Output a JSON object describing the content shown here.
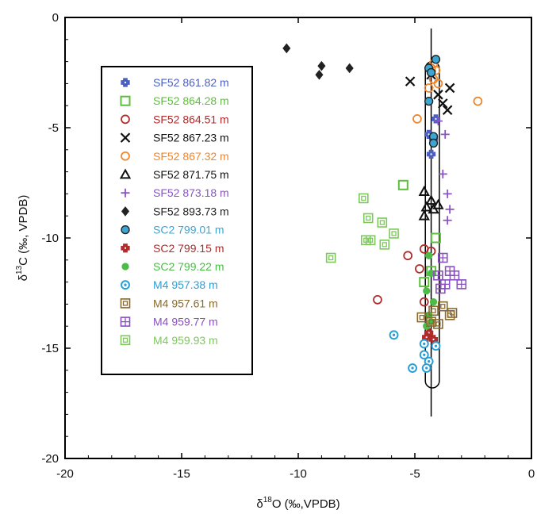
{
  "chart_data": {
    "type": "scatter",
    "title": "",
    "xlabel": "δ18O (‰,VPDB)",
    "xlabel_parts": {
      "pre": "δ",
      "sup": "18",
      "post": "O (‰,VPDB)"
    },
    "ylabel": "δ13C (‰, VPDB)",
    "ylabel_parts": {
      "pre": "δ",
      "sup": "13",
      "post": "C (‰, VPDB)"
    },
    "xlim": [
      -20,
      0
    ],
    "ylim": [
      -20,
      0
    ],
    "xticks": [
      "-20",
      "-15",
      "-10",
      "-5",
      "0"
    ],
    "yticks": [
      "0",
      "-5",
      "-10",
      "-15",
      "-20"
    ],
    "grid": false,
    "legend_position": "left",
    "reference_line_x": -4.3,
    "envelope": {
      "x_min": -4.55,
      "x_max": -3.95,
      "y_min": -16.8,
      "y_max": -2.0
    },
    "series": [
      {
        "name": "SF52 861.82 m",
        "marker": "plus-circle",
        "color": "#4a5fc1",
        "points": [
          [
            -4.4,
            -5.3
          ],
          [
            -4.2,
            -5.5
          ],
          [
            -4.3,
            -6.2
          ],
          [
            -4.1,
            -4.6
          ]
        ]
      },
      {
        "name": "SF52 864.28 m",
        "marker": "square-open",
        "color": "#5cbf3c",
        "points": [
          [
            -5.5,
            -7.6
          ],
          [
            -4.1,
            -10.0
          ],
          [
            -4.6,
            -12.0
          ],
          [
            -4.3,
            -11.5
          ]
        ]
      },
      {
        "name": "SF52 864.51 m",
        "marker": "circle-open",
        "color": "#b22a2a",
        "points": [
          [
            -5.3,
            -10.8
          ],
          [
            -4.8,
            -11.4
          ],
          [
            -4.6,
            -10.5
          ],
          [
            -6.6,
            -12.8
          ],
          [
            -4.6,
            -12.9
          ],
          [
            -4.3,
            -10.6
          ]
        ]
      },
      {
        "name": "SF52 867.23 m",
        "marker": "x",
        "color": "#111111",
        "points": [
          [
            -5.2,
            -2.9
          ],
          [
            -4.0,
            -3.5
          ],
          [
            -3.8,
            -3.9
          ],
          [
            -3.6,
            -4.2
          ],
          [
            -3.5,
            -3.2
          ],
          [
            -4.3,
            -2.6
          ]
        ]
      },
      {
        "name": "SF52 867.32 m",
        "marker": "circle-open",
        "color": "#f0862b",
        "points": [
          [
            -4.3,
            -2.3
          ],
          [
            -4.2,
            -2.8
          ],
          [
            -4.0,
            -3.0
          ],
          [
            -4.4,
            -3.2
          ],
          [
            -4.1,
            -2.4
          ],
          [
            -4.9,
            -4.6
          ],
          [
            -2.3,
            -3.8
          ],
          [
            -4.2,
            -2.1
          ]
        ]
      },
      {
        "name": "SF52 871.75 m",
        "marker": "triangle-open",
        "color": "#111111",
        "points": [
          [
            -4.6,
            -7.9
          ],
          [
            -4.3,
            -8.3
          ],
          [
            -4.5,
            -8.6
          ],
          [
            -4.2,
            -8.7
          ],
          [
            -4.0,
            -8.5
          ],
          [
            -4.6,
            -9.0
          ]
        ]
      },
      {
        "name": "SF52 873.18 m",
        "marker": "plus",
        "color": "#8a53c7",
        "points": [
          [
            -3.6,
            -8.0
          ],
          [
            -3.5,
            -8.7
          ],
          [
            -3.6,
            -9.2
          ],
          [
            -3.8,
            -7.1
          ],
          [
            -3.7,
            -5.3
          ],
          [
            -4.0,
            -4.7
          ]
        ]
      },
      {
        "name": "SF52 893.73 m",
        "marker": "diamond-filled",
        "color": "#222222",
        "points": [
          [
            -10.5,
            -1.4
          ],
          [
            -9.0,
            -2.2
          ],
          [
            -9.1,
            -2.6
          ],
          [
            -7.8,
            -2.3
          ]
        ]
      },
      {
        "name": "SC2 799.01 m",
        "marker": "circle-filled-outline",
        "color": "#3aa6d4",
        "points": [
          [
            -4.4,
            -2.3
          ],
          [
            -4.1,
            -1.9
          ],
          [
            -4.4,
            -3.8
          ],
          [
            -4.2,
            -5.4
          ],
          [
            -4.2,
            -5.7
          ],
          [
            -4.3,
            -2.5
          ]
        ]
      },
      {
        "name": "SC2 799.15 m",
        "marker": "plus-circle",
        "color": "#b22a2a",
        "points": [
          [
            -4.4,
            -14.3
          ],
          [
            -4.2,
            -14.6
          ],
          [
            -4.5,
            -14.5
          ]
        ]
      },
      {
        "name": "SC2 799.22 m",
        "marker": "circle-filled",
        "color": "#4cbb47",
        "points": [
          [
            -4.4,
            -10.8
          ],
          [
            -4.3,
            -11.6
          ],
          [
            -4.5,
            -12.4
          ],
          [
            -4.2,
            -12.9
          ],
          [
            -4.4,
            -13.5
          ],
          [
            -4.5,
            -14.0
          ],
          [
            -4.3,
            -13.8
          ]
        ]
      },
      {
        "name": "M4 957.38 m",
        "marker": "circle-dot",
        "color": "#2a9fd6",
        "points": [
          [
            -5.9,
            -14.4
          ],
          [
            -4.6,
            -14.8
          ],
          [
            -4.6,
            -15.3
          ],
          [
            -4.4,
            -15.6
          ],
          [
            -4.1,
            -14.9
          ],
          [
            -5.1,
            -15.9
          ],
          [
            -4.5,
            -15.9
          ]
        ]
      },
      {
        "name": "M4 957.61 m",
        "marker": "square-inner",
        "color": "#8a6a2c",
        "points": [
          [
            -3.8,
            -13.1
          ],
          [
            -4.2,
            -13.3
          ],
          [
            -3.5,
            -13.5
          ],
          [
            -4.7,
            -13.6
          ],
          [
            -4.0,
            -13.9
          ],
          [
            -3.4,
            -13.4
          ],
          [
            -4.3,
            -13.8
          ]
        ]
      },
      {
        "name": "M4 959.77 m",
        "marker": "square-grid",
        "color": "#8a4fc2",
        "points": [
          [
            -3.8,
            -10.9
          ],
          [
            -3.5,
            -11.5
          ],
          [
            -4.0,
            -11.7
          ],
          [
            -3.7,
            -12.1
          ],
          [
            -3.0,
            -12.1
          ],
          [
            -3.9,
            -12.3
          ],
          [
            -3.3,
            -11.7
          ]
        ]
      },
      {
        "name": "M4 959.93 m",
        "marker": "square-inner",
        "color": "#7cc95a",
        "points": [
          [
            -7.2,
            -8.2
          ],
          [
            -7.0,
            -9.1
          ],
          [
            -6.4,
            -9.3
          ],
          [
            -6.9,
            -10.1
          ],
          [
            -6.3,
            -10.3
          ],
          [
            -8.6,
            -10.9
          ],
          [
            -5.9,
            -9.8
          ],
          [
            -7.1,
            -10.1
          ]
        ]
      }
    ]
  }
}
